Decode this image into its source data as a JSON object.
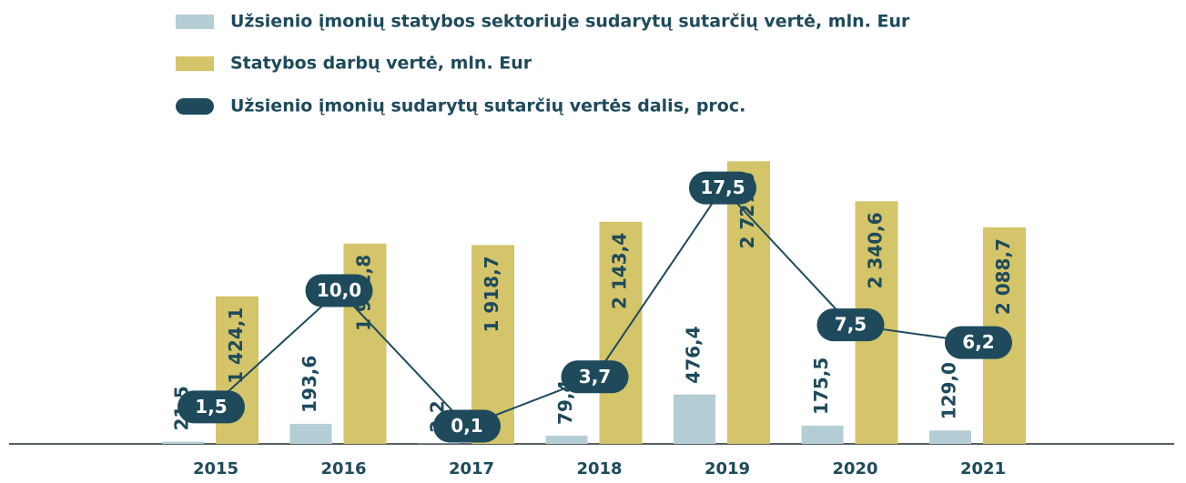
{
  "chart_data": {
    "type": "bar_line",
    "categories": [
      "2015",
      "2016",
      "2017",
      "2018",
      "2019",
      "2020",
      "2021"
    ],
    "series": [
      {
        "name": "Užsienio įmonių statybos sektoriuje sudarytų sutarčių vertė, mln. Eur",
        "color": "#b5cdd4",
        "values": [
          21.5,
          193.6,
          2.2,
          79.4,
          476.4,
          175.5,
          129.0
        ],
        "value_labels": [
          "21,5",
          "193,6",
          "2,2",
          "79,4",
          "476,4",
          "175,5",
          "129,0"
        ]
      },
      {
        "name": "Statybos darbų vertė, mln. Eur",
        "color": "#d4c46a",
        "values": [
          1424.1,
          1932.8,
          1918.7,
          2143.4,
          2727.0,
          2340.6,
          2088.7
        ],
        "value_labels": [
          "1 424,1",
          "1 932,8",
          "1 918,7",
          "2 143,4",
          "2 727,0",
          "2 340,6",
          "2 088,7"
        ]
      },
      {
        "name": "Užsienio įmonių sudarytų sutarčių vertės dalis, proc.",
        "color": "#1e4a5c",
        "axis": "y2",
        "values": [
          1.5,
          10.0,
          0.1,
          3.7,
          17.5,
          7.5,
          6.2
        ],
        "value_labels": [
          "1,5",
          "10,0",
          "0,1",
          "3,7",
          "17,5",
          "7,5",
          "6,2"
        ]
      }
    ],
    "ylim": [
      0,
      2800
    ],
    "y2lim": [
      -1.2,
      20
    ]
  }
}
